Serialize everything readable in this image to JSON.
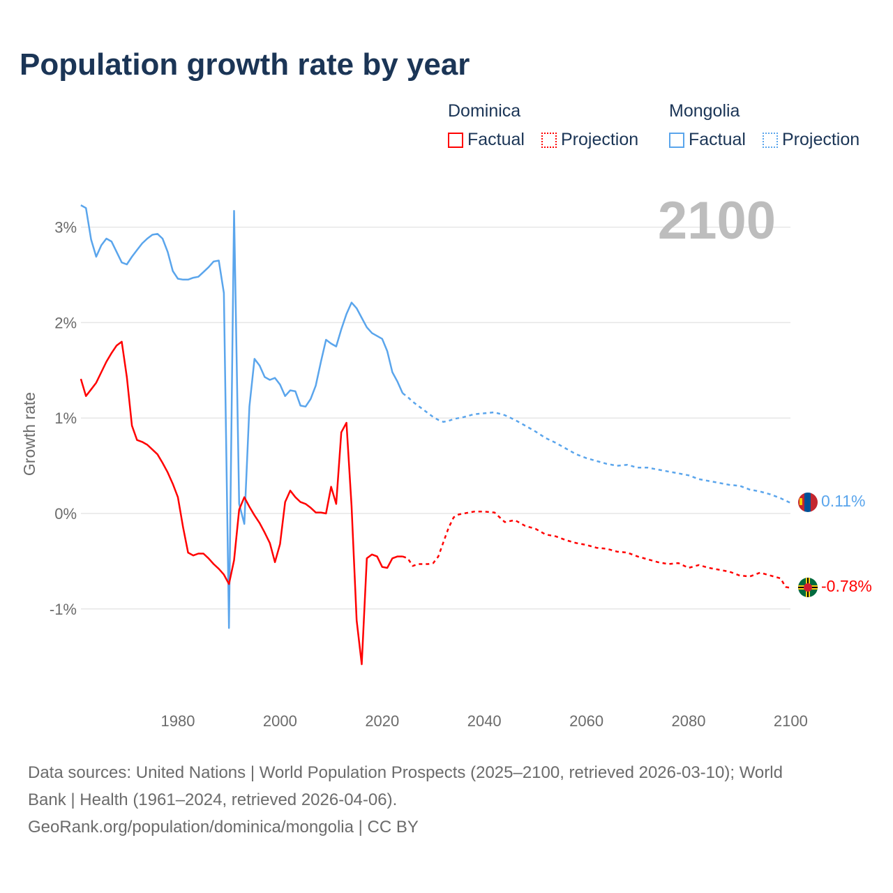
{
  "title": "Population growth rate by year",
  "legend": {
    "groups": [
      {
        "name": "Dominica",
        "factual": "Factual",
        "projection": "Projection",
        "color": "#ff0000"
      },
      {
        "name": "Mongolia",
        "factual": "Factual",
        "projection": "Projection",
        "color": "#5aa5ec"
      }
    ]
  },
  "year_label": "2100",
  "end_labels": {
    "mongolia": "0.11%",
    "dominica": "-0.78%"
  },
  "footer": {
    "line1": "Data sources: United Nations | World Population Prospects (2025–2100, retrieved 2026-03-10); World",
    "line2": "Bank | Health (1961–2024, retrieved 2026-04-06).",
    "line3": "GeoRank.org/population/dominica/mongolia | CC BY"
  },
  "chart_data": {
    "type": "line",
    "title": "Population growth rate by year",
    "xlabel": "",
    "ylabel": "Growth rate",
    "xlim": [
      1961,
      2100
    ],
    "ylim": [
      -1.9,
      3.4
    ],
    "x_ticks": [
      1980,
      2000,
      2020,
      2040,
      2060,
      2080,
      2100
    ],
    "y_ticks": [
      {
        "v": 3,
        "label": "3%"
      },
      {
        "v": 2,
        "label": "2%"
      },
      {
        "v": 1,
        "label": "1%"
      },
      {
        "v": 0,
        "label": "0%"
      },
      {
        "v": -1,
        "label": "-1%"
      }
    ],
    "grid": true,
    "series": [
      {
        "name": "Mongolia",
        "color": "#5aa5ec",
        "factual": {
          "x": [
            1961,
            1962,
            1963,
            1964,
            1965,
            1966,
            1967,
            1968,
            1969,
            1970,
            1971,
            1972,
            1973,
            1974,
            1975,
            1976,
            1977,
            1978,
            1979,
            1980,
            1981,
            1982,
            1983,
            1984,
            1985,
            1986,
            1987,
            1988,
            1989,
            1990,
            1991,
            1992,
            1993,
            1994,
            1995,
            1996,
            1997,
            1998,
            1999,
            2000,
            2001,
            2002,
            2003,
            2004,
            2005,
            2006,
            2007,
            2008,
            2009,
            2010,
            2011,
            2012,
            2013,
            2014,
            2015,
            2016,
            2017,
            2018,
            2019,
            2020,
            2021,
            2022,
            2023,
            2024
          ],
          "y": [
            3.23,
            3.2,
            2.87,
            2.69,
            2.81,
            2.88,
            2.85,
            2.74,
            2.63,
            2.61,
            2.69,
            2.76,
            2.83,
            2.88,
            2.92,
            2.93,
            2.88,
            2.74,
            2.54,
            2.46,
            2.45,
            2.45,
            2.47,
            2.48,
            2.53,
            2.58,
            2.64,
            2.65,
            2.31,
            -1.2,
            3.17,
            0.1,
            -0.11,
            1.12,
            1.62,
            1.55,
            1.43,
            1.4,
            1.42,
            1.35,
            1.23,
            1.29,
            1.28,
            1.13,
            1.12,
            1.2,
            1.34,
            1.59,
            1.82,
            1.78,
            1.75,
            1.93,
            2.09,
            2.21,
            2.15,
            2.05,
            1.95,
            1.89,
            1.86,
            1.83,
            1.7,
            1.48,
            1.38,
            1.26
          ]
        },
        "projection": {
          "x": [
            2024,
            2025,
            2026,
            2027,
            2028,
            2029,
            2030,
            2031,
            2032,
            2033,
            2034,
            2035,
            2036,
            2038,
            2040,
            2042,
            2044,
            2046,
            2048,
            2050,
            2052,
            2054,
            2056,
            2058,
            2060,
            2062,
            2064,
            2066,
            2068,
            2070,
            2072,
            2074,
            2076,
            2078,
            2080,
            2082,
            2084,
            2086,
            2088,
            2090,
            2092,
            2094,
            2096,
            2098,
            2100
          ],
          "y": [
            1.26,
            1.22,
            1.17,
            1.13,
            1.09,
            1.05,
            1.01,
            0.98,
            0.96,
            0.97,
            0.99,
            1.0,
            1.01,
            1.04,
            1.05,
            1.06,
            1.03,
            0.98,
            0.92,
            0.86,
            0.79,
            0.74,
            0.68,
            0.62,
            0.58,
            0.55,
            0.52,
            0.5,
            0.51,
            0.48,
            0.48,
            0.46,
            0.44,
            0.42,
            0.4,
            0.36,
            0.34,
            0.32,
            0.3,
            0.29,
            0.25,
            0.23,
            0.2,
            0.16,
            0.11
          ]
        }
      },
      {
        "name": "Dominica",
        "color": "#ff0000",
        "factual": {
          "x": [
            1961,
            1962,
            1963,
            1964,
            1965,
            1966,
            1967,
            1968,
            1969,
            1970,
            1971,
            1972,
            1973,
            1974,
            1975,
            1976,
            1977,
            1978,
            1979,
            1980,
            1981,
            1982,
            1983,
            1984,
            1985,
            1986,
            1987,
            1988,
            1989,
            1990,
            1991,
            1992,
            1993,
            1994,
            1995,
            1996,
            1997,
            1998,
            1999,
            2000,
            2001,
            2002,
            2003,
            2004,
            2005,
            2006,
            2007,
            2008,
            2009,
            2010,
            2011,
            2012,
            2013,
            2014,
            2015,
            2016,
            2017,
            2018,
            2019,
            2020,
            2021,
            2022,
            2023,
            2024
          ],
          "y": [
            1.41,
            1.23,
            1.3,
            1.37,
            1.48,
            1.59,
            1.68,
            1.76,
            1.8,
            1.43,
            0.92,
            0.77,
            0.75,
            0.72,
            0.67,
            0.62,
            0.53,
            0.43,
            0.31,
            0.17,
            -0.14,
            -0.41,
            -0.44,
            -0.42,
            -0.42,
            -0.47,
            -0.53,
            -0.58,
            -0.64,
            -0.74,
            -0.49,
            0.04,
            0.17,
            0.07,
            -0.02,
            -0.1,
            -0.2,
            -0.31,
            -0.51,
            -0.32,
            0.12,
            0.24,
            0.17,
            0.12,
            0.1,
            0.06,
            0.01,
            0.01,
            0.0,
            0.28,
            0.1,
            0.85,
            0.95,
            0.08,
            -1.12,
            -1.58,
            -0.47,
            -0.43,
            -0.45,
            -0.56,
            -0.57,
            -0.47,
            -0.45,
            -0.45
          ]
        },
        "projection": {
          "x": [
            2024,
            2025,
            2026,
            2027,
            2028,
            2029,
            2030,
            2031,
            2032,
            2033,
            2034,
            2035,
            2036,
            2038,
            2040,
            2042,
            2044,
            2046,
            2048,
            2050,
            2052,
            2054,
            2056,
            2058,
            2060,
            2062,
            2064,
            2066,
            2068,
            2070,
            2072,
            2074,
            2076,
            2078,
            2080,
            2082,
            2084,
            2086,
            2088,
            2090,
            2092,
            2094,
            2096,
            2098,
            2099,
            2100
          ],
          "y": [
            -0.45,
            -0.47,
            -0.55,
            -0.53,
            -0.53,
            -0.53,
            -0.52,
            -0.45,
            -0.3,
            -0.15,
            -0.04,
            -0.01,
            0.0,
            0.02,
            0.02,
            0.01,
            -0.09,
            -0.07,
            -0.13,
            -0.16,
            -0.22,
            -0.24,
            -0.28,
            -0.31,
            -0.33,
            -0.36,
            -0.37,
            -0.4,
            -0.41,
            -0.45,
            -0.48,
            -0.51,
            -0.53,
            -0.52,
            -0.57,
            -0.54,
            -0.57,
            -0.59,
            -0.61,
            -0.65,
            -0.66,
            -0.62,
            -0.65,
            -0.68,
            -0.77,
            -0.78
          ]
        }
      }
    ]
  }
}
